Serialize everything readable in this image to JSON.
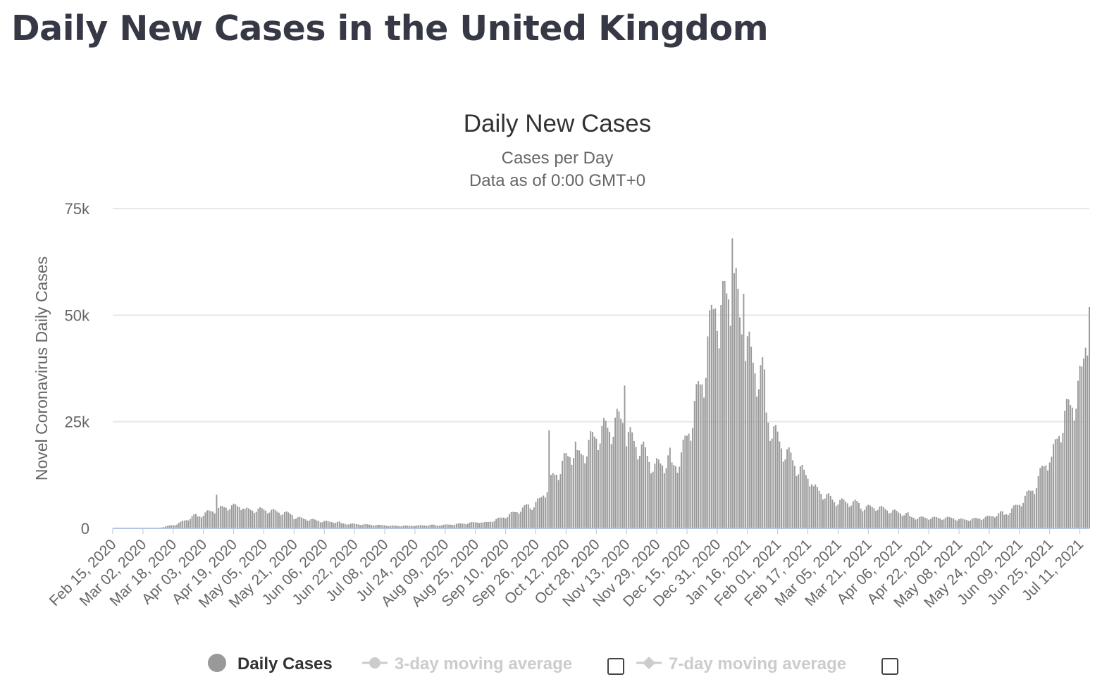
{
  "page": {
    "title": "Daily New Cases in the United Kingdom"
  },
  "colors": {
    "bars": "#999999",
    "baseline": "#b4c6e0",
    "grid": "#e6e6e6",
    "title": "#363945",
    "legend_inactive": "#cccccc"
  },
  "chart_data": {
    "type": "bar",
    "title": "Daily New Cases",
    "subtitle_lines": [
      "Cases per Day",
      "Data as of 0:00 GMT+0"
    ],
    "ylabel": "Novel Coronavirus Daily Cases",
    "xlabel": "",
    "ylim": [
      0,
      75000
    ],
    "y_ticks": [
      0,
      25000,
      50000,
      75000
    ],
    "y_tick_labels": [
      "0",
      "25k",
      "50k",
      "75k"
    ],
    "grid": true,
    "x_start": "2020-02-15",
    "x_end": "2021-07-16",
    "x_tick_labels": [
      "Feb 15, 2020",
      "Mar 02, 2020",
      "Mar 18, 2020",
      "Apr 03, 2020",
      "Apr 19, 2020",
      "May 05, 2020",
      "May 21, 2020",
      "Jun 06, 2020",
      "Jun 22, 2020",
      "Jul 08, 2020",
      "Jul 24, 2020",
      "Aug 09, 2020",
      "Aug 25, 2020",
      "Sep 10, 2020",
      "Sep 26, 2020",
      "Oct 12, 2020",
      "Oct 28, 2020",
      "Nov 13, 2020",
      "Nov 29, 2020",
      "Dec 15, 2020",
      "Dec 31, 2020",
      "Jan 16, 2021",
      "Feb 01, 2021",
      "Feb 17, 2021",
      "Mar 05, 2021",
      "Mar 21, 2021",
      "Apr 06, 2021",
      "Apr 22, 2021",
      "May 08, 2021",
      "May 24, 2021",
      "Jun 09, 2021",
      "Jun 25, 2021",
      "Jul 11, 2021"
    ],
    "series": [
      {
        "name": "Daily Cases",
        "keyframes": [
          [
            "2020-02-15",
            0
          ],
          [
            "2020-03-10",
            100
          ],
          [
            "2020-03-20",
            1000
          ],
          [
            "2020-03-28",
            2500
          ],
          [
            "2020-04-05",
            4000
          ],
          [
            "2020-04-15",
            5000
          ],
          [
            "2020-04-25",
            4800
          ],
          [
            "2020-05-05",
            4500
          ],
          [
            "2020-05-15",
            3500
          ],
          [
            "2020-05-25",
            2500
          ],
          [
            "2020-06-05",
            1600
          ],
          [
            "2020-06-20",
            1100
          ],
          [
            "2020-07-05",
            700
          ],
          [
            "2020-07-20",
            600
          ],
          [
            "2020-08-01",
            700
          ],
          [
            "2020-08-15",
            1000
          ],
          [
            "2020-08-31",
            1500
          ],
          [
            "2020-09-10",
            2800
          ],
          [
            "2020-09-20",
            4500
          ],
          [
            "2020-09-28",
            7000
          ],
          [
            "2020-10-05",
            12000
          ],
          [
            "2020-10-12",
            15500
          ],
          [
            "2020-10-20",
            19000
          ],
          [
            "2020-10-28",
            22500
          ],
          [
            "2020-11-05",
            23000
          ],
          [
            "2020-11-13",
            24000
          ],
          [
            "2020-11-20",
            20000
          ],
          [
            "2020-11-28",
            14000
          ],
          [
            "2020-12-05",
            15000
          ],
          [
            "2020-12-12",
            18000
          ],
          [
            "2020-12-18",
            27000
          ],
          [
            "2020-12-24",
            36000
          ],
          [
            "2020-12-30",
            50000
          ],
          [
            "2021-01-04",
            58000
          ],
          [
            "2021-01-08",
            62000
          ],
          [
            "2021-01-12",
            50000
          ],
          [
            "2021-01-18",
            38000
          ],
          [
            "2021-01-24",
            33000
          ],
          [
            "2021-01-31",
            23000
          ],
          [
            "2021-02-07",
            17000
          ],
          [
            "2021-02-15",
            12000
          ],
          [
            "2021-02-23",
            9500
          ],
          [
            "2021-03-03",
            6500
          ],
          [
            "2021-03-15",
            5500
          ],
          [
            "2021-03-25",
            5200
          ],
          [
            "2021-04-06",
            3500
          ],
          [
            "2021-04-15",
            2700
          ],
          [
            "2021-04-30",
            2300
          ],
          [
            "2021-05-15",
            2200
          ],
          [
            "2021-05-24",
            2600
          ],
          [
            "2021-06-01",
            3500
          ],
          [
            "2021-06-09",
            6000
          ],
          [
            "2021-06-17",
            9500
          ],
          [
            "2021-06-25",
            16000
          ],
          [
            "2021-07-01",
            26000
          ],
          [
            "2021-07-07",
            30000
          ],
          [
            "2021-07-12",
            34000
          ],
          [
            "2021-07-16",
            51000
          ]
        ],
        "notable_values": [
          [
            "2020-04-10",
            7900
          ],
          [
            "2020-10-03",
            23000
          ],
          [
            "2020-11-12",
            33500
          ],
          [
            "2021-01-08",
            68000
          ],
          [
            "2021-01-14",
            55000
          ],
          [
            "2021-07-16",
            51900
          ]
        ]
      }
    ],
    "legend": {
      "position": "bottom",
      "items": [
        {
          "label": "Daily Cases",
          "active": true
        },
        {
          "label": "3-day moving average",
          "active": false
        },
        {
          "label": "7-day moving average",
          "active": false
        }
      ]
    }
  }
}
